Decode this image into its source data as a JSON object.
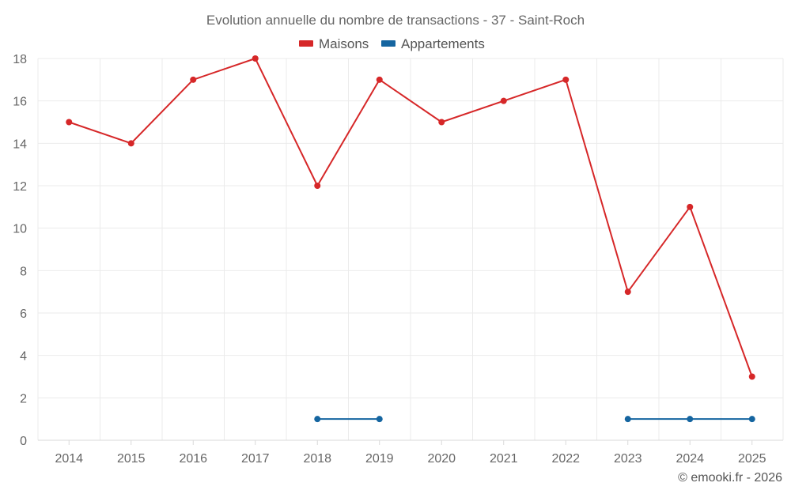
{
  "chart_data": {
    "type": "line",
    "title": "Evolution annuelle du nombre de transactions - 37 - Saint-Roch",
    "xlabel": "",
    "ylabel": "",
    "categories": [
      "2014",
      "2015",
      "2016",
      "2017",
      "2018",
      "2019",
      "2020",
      "2021",
      "2022",
      "2023",
      "2024",
      "2025"
    ],
    "ylim": [
      0,
      18
    ],
    "yticks": [
      0,
      2,
      4,
      6,
      8,
      10,
      12,
      14,
      16,
      18
    ],
    "grid": true,
    "legend_position": "top-center",
    "series": [
      {
        "name": "Maisons",
        "color": "#d62728",
        "values": [
          15,
          14,
          17,
          18,
          12,
          17,
          15,
          16,
          17,
          7,
          11,
          3
        ]
      },
      {
        "name": "Appartements",
        "color": "#1565a0",
        "values": [
          null,
          null,
          null,
          null,
          1,
          1,
          null,
          null,
          null,
          1,
          1,
          1
        ]
      }
    ],
    "credit": "© emooki.fr - 2026"
  }
}
